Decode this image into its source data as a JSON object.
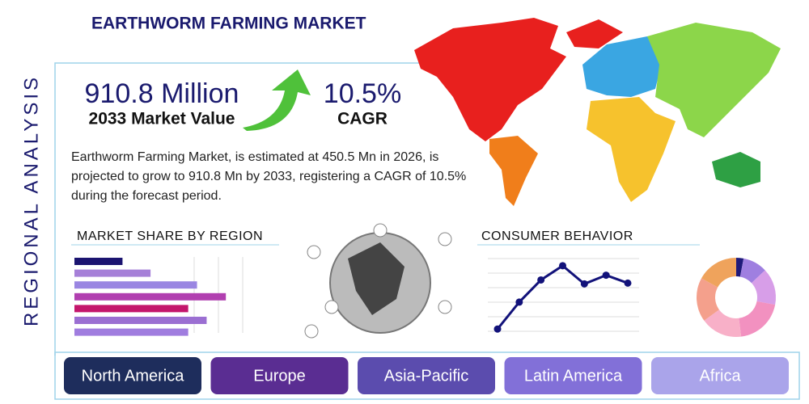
{
  "title": "EARTHWORM FARMING MARKET",
  "side_title": "REGIONAL ANALYSIS",
  "stats": [
    {
      "value": "910.8 Million",
      "label": "2033 Market Value"
    },
    {
      "value": "10.5%",
      "label": "CAGR"
    }
  ],
  "description": "Earthworm Farming Market, is estimated at 450.5 Mn in 2026, is projected to grow to 910.8 Mn by 2033, registering a CAGR of 10.5% during the forecast period.",
  "market_share": {
    "title": "MARKET SHARE BY REGION",
    "values": [
      60,
      95,
      153,
      189,
      142,
      165,
      142
    ],
    "xlim": [
      0,
      210
    ],
    "colors": [
      "#1b1470",
      "#a680d8",
      "#9a86e2",
      "#b13fb0",
      "#c4166c",
      "#9b6fd2",
      "#a07ddf"
    ]
  },
  "consumer_behavior": {
    "title": "CONSUMER BEHAVIOR",
    "values": [
      11,
      45,
      73,
      91,
      68,
      79,
      69
    ],
    "ylim": [
      0,
      100
    ],
    "color": "#12127a"
  },
  "donut": {
    "values": [
      3,
      10,
      15,
      20,
      17,
      18,
      17
    ],
    "colors": [
      "#1f1a7a",
      "#9f7fe0",
      "#d79ee8",
      "#f291c0",
      "#f8b0c8",
      "#f4a08c",
      "#efa35c"
    ]
  },
  "regions": [
    {
      "name": "North America",
      "color": "#1e2d5c"
    },
    {
      "name": "Europe",
      "color": "#5a2d92"
    },
    {
      "name": "Asia-Pacific",
      "color": "#5b4cae"
    },
    {
      "name": "Latin America",
      "color": "#8270d8"
    },
    {
      "name": "Africa",
      "color": "#aaa4ea"
    }
  ]
}
